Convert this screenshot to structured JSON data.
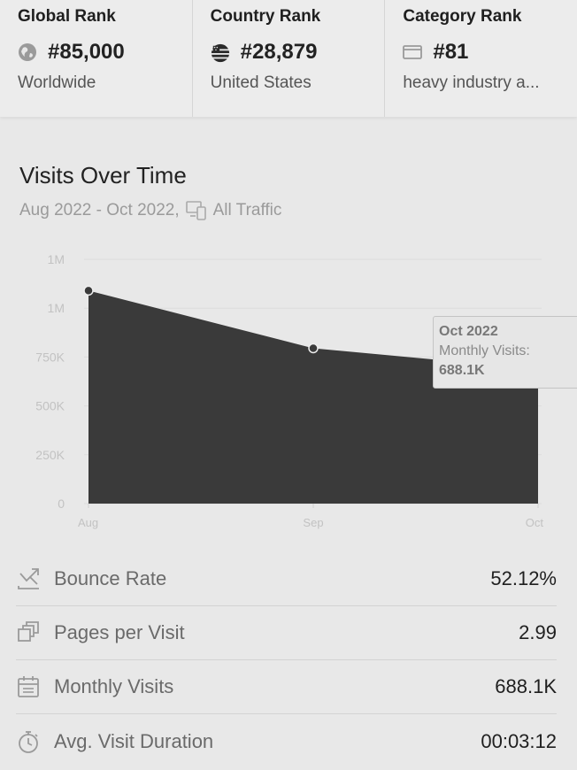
{
  "ranks": [
    {
      "title": "Global Rank",
      "value": "#85,000",
      "sub": "Worldwide",
      "icon": "globe-icon"
    },
    {
      "title": "Country Rank",
      "value": "#28,879",
      "sub": "United States",
      "icon": "us-flag-icon"
    },
    {
      "title": "Category Rank",
      "value": "#81",
      "sub": "heavy industry a...",
      "icon": "category-icon"
    }
  ],
  "visits": {
    "title": "Visits Over Time",
    "date_range": "Aug 2022 - Oct 2022,",
    "traffic_label": "All Traffic"
  },
  "tooltip": {
    "date": "Oct 2022",
    "label": "Monthly Visits:",
    "value": "688.1K"
  },
  "chart_data": {
    "type": "area",
    "categories": [
      "Aug",
      "Sep",
      "Oct"
    ],
    "series": [
      {
        "values": [
          1090000,
          795000,
          688100
        ]
      }
    ],
    "ylim": [
      0,
      1250000
    ],
    "y_ticks": [
      0,
      250000,
      500000,
      750000,
      1000000,
      1250000
    ],
    "y_tick_labels": [
      "0",
      "250K",
      "500K",
      "750K",
      "1M",
      "1M"
    ],
    "fill_color": "#3a3a3a",
    "grid": true
  },
  "metrics": [
    {
      "label": "Bounce Rate",
      "value": "52.12%",
      "icon": "bounce-rate-icon"
    },
    {
      "label": "Pages per Visit",
      "value": "2.99",
      "icon": "pages-icon"
    },
    {
      "label": "Monthly Visits",
      "value": "688.1K",
      "icon": "calendar-icon"
    },
    {
      "label": "Avg. Visit Duration",
      "value": "00:03:12",
      "icon": "stopwatch-icon"
    }
  ]
}
